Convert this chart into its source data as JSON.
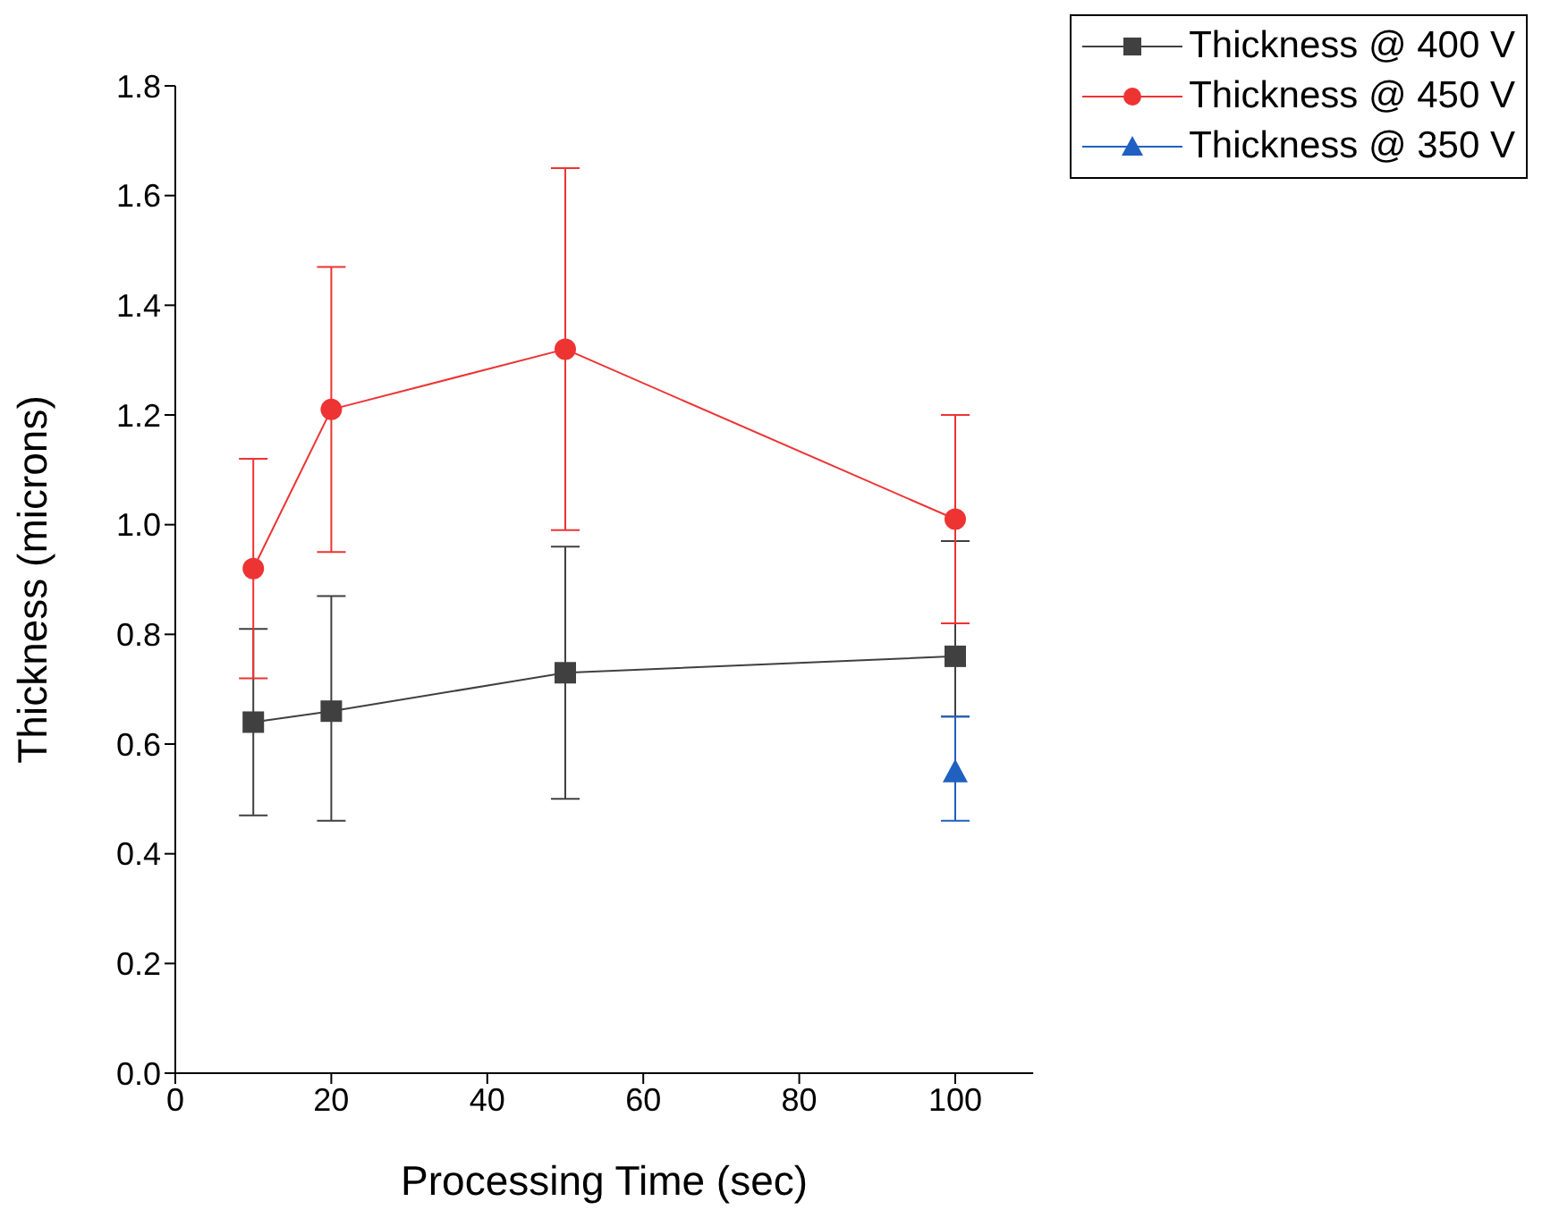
{
  "chart_data": {
    "type": "line",
    "xlabel": "Processing Time (sec)",
    "ylabel": "Thickness (microns)",
    "xlim": [
      0,
      110
    ],
    "xticks": [
      0,
      20,
      40,
      60,
      80,
      100
    ],
    "ylim": [
      0,
      1.8
    ],
    "yticks": [
      {
        "value": 0,
        "label": "0.0"
      },
      {
        "value": 0.2,
        "label": "0.2"
      },
      {
        "value": 0.4,
        "label": "0.4"
      },
      {
        "value": 0.6,
        "label": "0.6"
      },
      {
        "value": 0.8,
        "label": "0.8"
      },
      {
        "value": 1.0,
        "label": "1.0"
      },
      {
        "value": 1.2,
        "label": "1.2"
      },
      {
        "value": 1.4,
        "label": "1.4"
      },
      {
        "value": 1.6,
        "label": "1.6"
      },
      {
        "value": 1.8,
        "label": "1.8"
      }
    ],
    "legend": "top right",
    "grid": false,
    "series": [
      {
        "name": "Thickness @ 400 V",
        "color": "#404040",
        "marker": "square",
        "x": [
          10,
          20,
          50,
          100
        ],
        "values": [
          0.64,
          0.66,
          0.73,
          0.76
        ],
        "errors": [
          [
            0.47,
            0.81
          ],
          [
            0.46,
            0.87
          ],
          [
            0.5,
            0.96
          ],
          [
            0.65,
            0.97
          ]
        ]
      },
      {
        "name": "Thickness @ 450 V",
        "color": "#ee3333",
        "marker": "circle",
        "x": [
          10,
          20,
          50,
          100
        ],
        "values": [
          0.92,
          1.21,
          1.32,
          1.01
        ],
        "errors": [
          [
            0.72,
            1.12
          ],
          [
            0.95,
            1.47
          ],
          [
            0.99,
            1.65
          ],
          [
            0.82,
            1.2
          ]
        ]
      },
      {
        "name": "Thickness @ 350 V",
        "color": "#1f60c0",
        "marker": "triangle",
        "x": [
          100
        ],
        "values": [
          0.55
        ],
        "errors": [
          [
            0.46,
            0.65
          ]
        ]
      }
    ]
  }
}
